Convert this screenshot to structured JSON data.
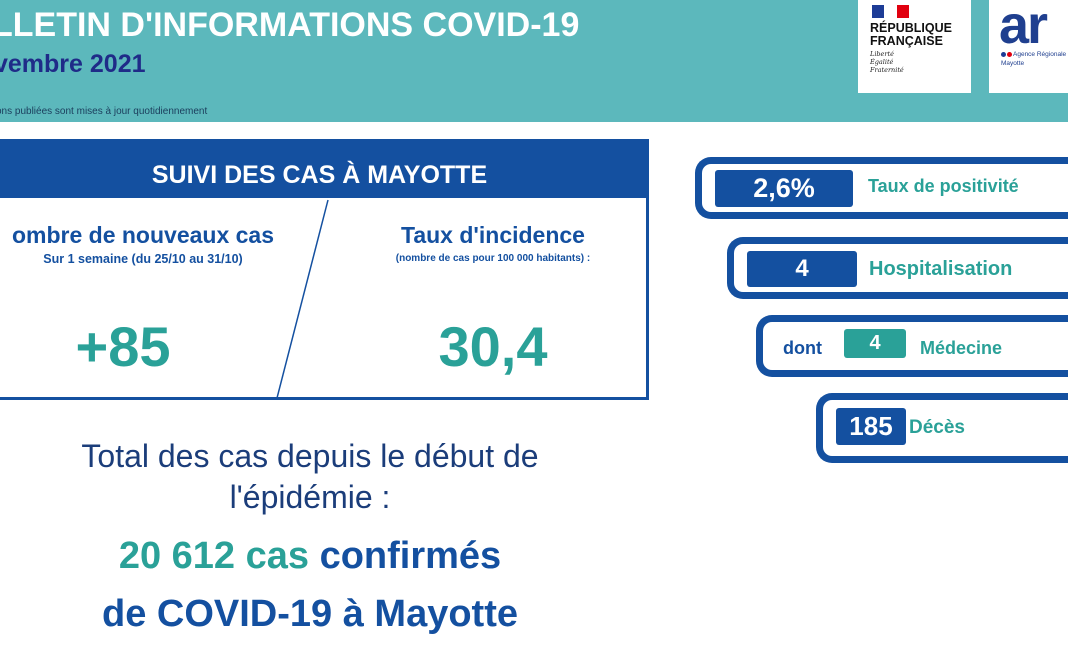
{
  "header": {
    "title": "LLETIN D'INFORMATIONS COVID-19",
    "subtitle": "vembre 2021",
    "note": "ons publiées sont mises à jour quotidiennement"
  },
  "logos": {
    "rf_name": "RÉPUBLIQUE\nFRANÇAISE",
    "rf_motto": "Liberté\nÉgalité\nFraternité",
    "ars_word": "ar",
    "ars_tagline": "Agence Régionale",
    "ars_region": "Mayotte"
  },
  "cases_panel": {
    "heading": "SUIVI DES CAS À MAYOTTE",
    "new_cases_title": "ombre de nouveaux cas",
    "new_cases_subtitle": "Sur 1 semaine (du 25/10 au 31/10)",
    "new_cases_value": "+85",
    "incidence_title": "Taux d'incidence",
    "incidence_subtitle": "(nombre de cas pour 100 000 habitants) :",
    "incidence_value": "30,4"
  },
  "total": {
    "line1": "Total des cas depuis le début de",
    "line2": "l'épidémie :",
    "count": "20 612 cas",
    "confirmed": "confirmés",
    "line4": "de COVID-19 à Mayotte"
  },
  "indicators": {
    "positivity_value": "2,6%",
    "positivity_label": "Taux de positivité",
    "hosp_value": "4",
    "hosp_label": "Hospitalisation",
    "medecine_prefix": "dont",
    "medecine_value": "4",
    "medecine_label": "Médecine",
    "deaths_value": "185",
    "deaths_label": "Décès"
  },
  "colors": {
    "header_bg": "#5cb8bc",
    "primary_blue": "#1450a0",
    "teal": "#2aa198",
    "flag_blue": "#1d3c96",
    "flag_red": "#e1000f"
  }
}
